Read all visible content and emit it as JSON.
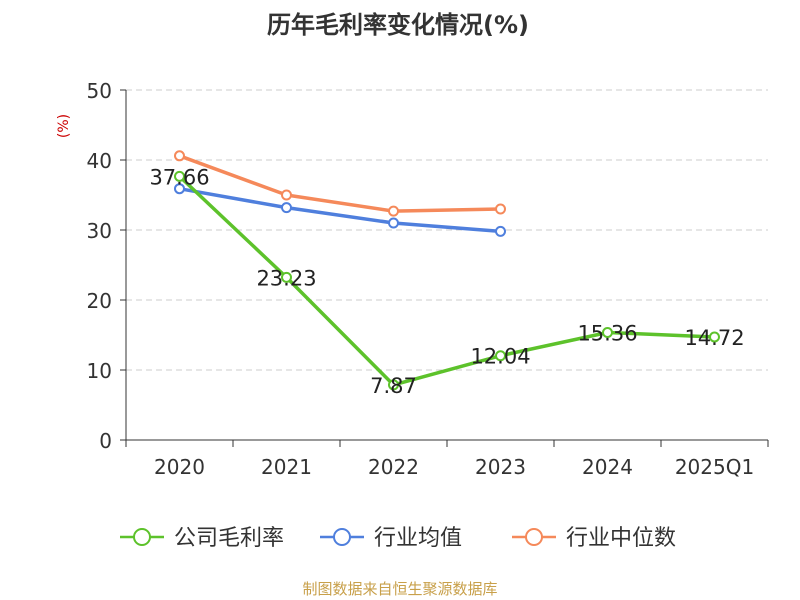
{
  "chart_data": {
    "type": "line",
    "title": "历年毛利率变化情况(%)",
    "ylabel": "(%)",
    "xlabel": "",
    "categories": [
      "2020",
      "2021",
      "2022",
      "2023",
      "2024",
      "2025Q1"
    ],
    "ylim": [
      0,
      50
    ],
    "yticks": [
      0,
      10,
      20,
      30,
      40,
      50
    ],
    "grid": true,
    "legend_position": "bottom",
    "series": [
      {
        "name": "公司毛利率",
        "color": "#5dc22b",
        "values": [
          37.66,
          23.23,
          7.87,
          12.04,
          15.36,
          14.72
        ],
        "labels": [
          "37.66",
          "23.23",
          "7.87",
          "12.04",
          "15.36",
          "14.72"
        ]
      },
      {
        "name": "行业均值",
        "color": "#4f7fdd",
        "values": [
          35.9,
          33.2,
          31.0,
          29.8,
          null,
          null
        ]
      },
      {
        "name": "行业中位数",
        "color": "#f5895a",
        "values": [
          40.6,
          35.0,
          32.7,
          33.0,
          null,
          null
        ]
      }
    ]
  },
  "footer": {
    "source": "制图数据来自恒生聚源数据库"
  },
  "colors": {
    "ylabel": "#cc0000",
    "footer": "#c8a04a",
    "grid": "#cccccc",
    "axis": "#333333"
  }
}
